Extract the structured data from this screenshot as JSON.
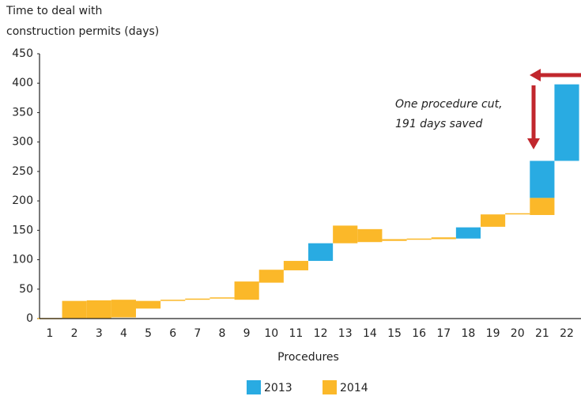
{
  "chart_data": {
    "type": "floating-bar",
    "title": [
      "Time to deal with",
      "construction permits (days)"
    ],
    "x_label": "Procedures",
    "annotation": [
      "One procedure cut,",
      "191 days saved"
    ],
    "categories": [
      "1",
      "2",
      "3",
      "4",
      "5",
      "6",
      "7",
      "8",
      "9",
      "10",
      "11",
      "12",
      "13",
      "14",
      "15",
      "16",
      "17",
      "18",
      "19",
      "20",
      "21",
      "22"
    ],
    "series": [
      {
        "name": "2013",
        "color": "#29abe2",
        "values": [
          null,
          null,
          null,
          null,
          null,
          null,
          null,
          null,
          null,
          null,
          null,
          [
            98,
            128
          ],
          null,
          null,
          null,
          null,
          null,
          [
            136,
            155
          ],
          null,
          null,
          [
            205,
            268
          ],
          [
            268,
            398
          ]
        ]
      },
      {
        "name": "2014",
        "color": "#fbb829",
        "values": [
          [
            0,
            1
          ],
          [
            0,
            30
          ],
          [
            0,
            31
          ],
          [
            2,
            32
          ],
          [
            17,
            30
          ],
          [
            30,
            32
          ],
          [
            32,
            34
          ],
          [
            34,
            36
          ],
          [
            32,
            63
          ],
          [
            61,
            83
          ],
          [
            82,
            98
          ],
          null,
          [
            128,
            158
          ],
          [
            130,
            152
          ],
          [
            132,
            135
          ],
          [
            134,
            136
          ],
          [
            135,
            138
          ],
          null,
          [
            156,
            177
          ],
          [
            177,
            179
          ],
          [
            176,
            205
          ],
          null
        ]
      }
    ],
    "ylim": [
      0,
      450
    ],
    "yticks": [
      0,
      50,
      100,
      150,
      200,
      250,
      300,
      350,
      400,
      450
    ],
    "grid": false,
    "legend": "bottom"
  }
}
